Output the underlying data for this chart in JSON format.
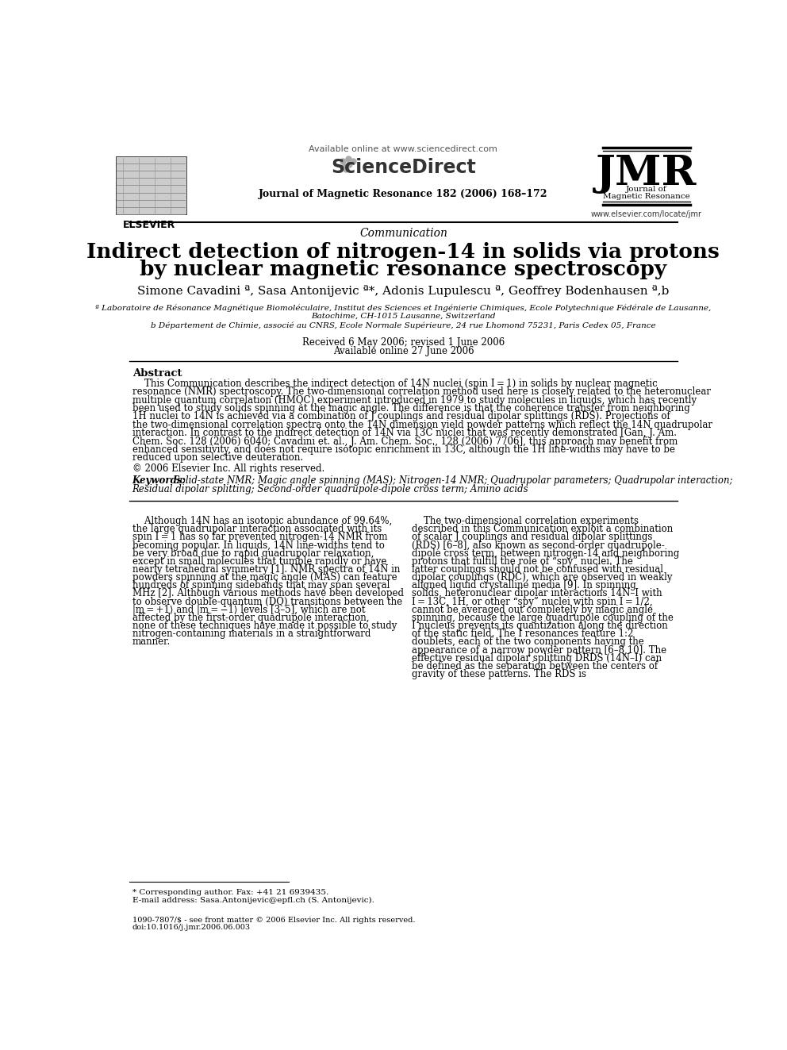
{
  "bg_color": "#ffffff",
  "header_available_online": "Available online at www.sciencedirect.com",
  "header_sciencedirect": "ScienceDirect",
  "header_journal_line": "Journal of Magnetic Resonance 182 (2006) 168–172",
  "header_jmr_big": "JMR",
  "header_jmr_sub1": "Journal of",
  "header_jmr_sub2": "Magnetic Resonance",
  "header_elsevier": "ELSEVIER",
  "header_website": "www.elsevier.com/locate/jmr",
  "article_type": "Communication",
  "title_line1": "Indirect detection of nitrogen-14 in solids via protons",
  "title_line2": "by nuclear magnetic resonance spectroscopy",
  "authors": "Simone Cavadini ª, Sasa Antonijevic ª*, Adonis Lupulescu ª, Geoffrey Bodenhausen ª,b",
  "affil_a": "ª Laboratoire de Résonance Magnétique Biomoléculaire, Institut des Sciences et Ingénierie Chimiques, Ecole Polytechnique Fédérale de Lausanne,",
  "affil_a2": "Batochime, CH-1015 Lausanne, Switzerland",
  "affil_b": "b Département de Chimie, associé au CNRS, Ecole Normale Supérieure, 24 rue Lhomond 75231, Paris Cedex 05, France",
  "received": "Received 6 May 2006; revised 1 June 2006",
  "available_online2": "Available online 27 June 2006",
  "abstract_label": "Abstract",
  "abstract_text": "    This Communication describes the indirect detection of 14N nuclei (spin I = 1) in solids by nuclear magnetic resonance (NMR) spectroscopy. The two-dimensional correlation method used here is closely related to the heteronuclear multiple quantum correlation (HMQC) experiment introduced in 1979 to study molecules in liquids, which has recently been used to study solids spinning at the magic angle. The difference is that the coherence transfer from neighboring 1H nuclei to 14N is achieved via a combination of J couplings and residual dipolar splittings (RDS). Projections of the two-dimensional correlation spectra onto the 14N dimension yield powder patterns which reflect the 14N quadrupolar interaction. In contrast to the indirect detection of 14N via 13C nuclei that was recently demonstrated [Gan, J. Am. Chem. Soc. 128 (2006) 6040; Cavadini et. al., J. Am. Chem. Soc., 128 (2006) 7706], this approach may benefit from enhanced sensitivity, and does not require isotopic enrichment in 13C, although the 1H line-widths may have to be reduced upon selective deuteration.",
  "copyright": "© 2006 Elsevier Inc. All rights reserved.",
  "keywords_label": "Keywords:",
  "keywords_text": " Solid-state NMR; Magic angle spinning (MAS); Nitrogen-14 NMR; Quadrupolar parameters; Quadrupolar interaction; Residual dipolar splitting; Second-order quadrupole-dipole cross term; Amino acids",
  "body_col1": "    Although 14N has an isotopic abundance of 99.64%, the large quadrupolar interaction associated with its spin I = 1 has so far prevented nitrogen-14 NMR from becoming popular. In liquids, 14N line-widths tend to be very broad due to rapid quadrupolar relaxation, except in small molecules that tumble rapidly or have nearly tetrahedral symmetry [1]. NMR spectra of 14N in powders spinning at the magic angle (MAS) can feature hundreds of spinning sidebands that may span several MHz [2]. Although various methods have been developed to observe double-quantum (DQ) transitions between the |m = +1⟩ and |m = −1⟩ levels [3–5], which are not affected by the first-order quadrupole interaction, none of these techniques have made it possible to study nitrogen-containing materials in a straightforward manner.",
  "body_col2": "    The two-dimensional correlation experiments described in this Communication exploit a combination of scalar J couplings and residual dipolar splittings (RDS) [6–8], also known as second-order quadrupole-dipole cross term, between nitrogen-14 and neighboring protons that fulfill the role of “spy” nuclei. The latter couplings should not be confused with residual dipolar couplings (RDC), which are observed in weakly aligned liquid crystalline media [9]. In spinning solids, heteronuclear dipolar interactions 14N–I with I = 13C, 1H, or other “spy” nuclei with spin I = 1/2, cannot be averaged out completely by magic angle spinning, because the large quadrupole coupling of the I nucleus prevents its quantization along the direction of the static field. The I resonances feature 1:2 doublets, each of the two components having the appearance of a narrow powder pattern [6–8,10]. The effective residual dipolar splitting DRDS (14N–I) can be defined as the separation between the centers of gravity of these patterns. The RDS is",
  "footnote_star": "* Corresponding author. Fax: +41 21 6939435.",
  "footnote_email": "E-mail address: Sasa.Antonijevic@epfl.ch (S. Antonijevic).",
  "footer1": "1090-7807/$ - see front matter © 2006 Elsevier Inc. All rights reserved.",
  "footer2": "doi:10.1016/j.jmr.2006.06.003"
}
